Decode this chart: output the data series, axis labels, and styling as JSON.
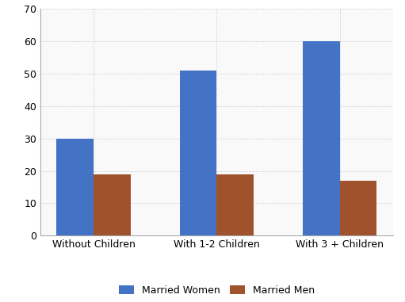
{
  "categories": [
    "Without Children",
    "With 1-2 Children",
    "With 3 + Children"
  ],
  "married_women": [
    30,
    51,
    60
  ],
  "married_men": [
    19,
    19,
    17
  ],
  "women_color": "#4472C4",
  "men_color": "#A0522D",
  "ylim": [
    0,
    70
  ],
  "yticks": [
    0,
    10,
    20,
    30,
    40,
    50,
    60,
    70
  ],
  "legend_labels": [
    "Married Women",
    "Married Men"
  ],
  "bar_width": 0.3,
  "background_color": "#ffffff",
  "plot_bg_color": "#f9f9f9",
  "grid_color": "#bbbbbb",
  "border_color": "#aaaaaa"
}
